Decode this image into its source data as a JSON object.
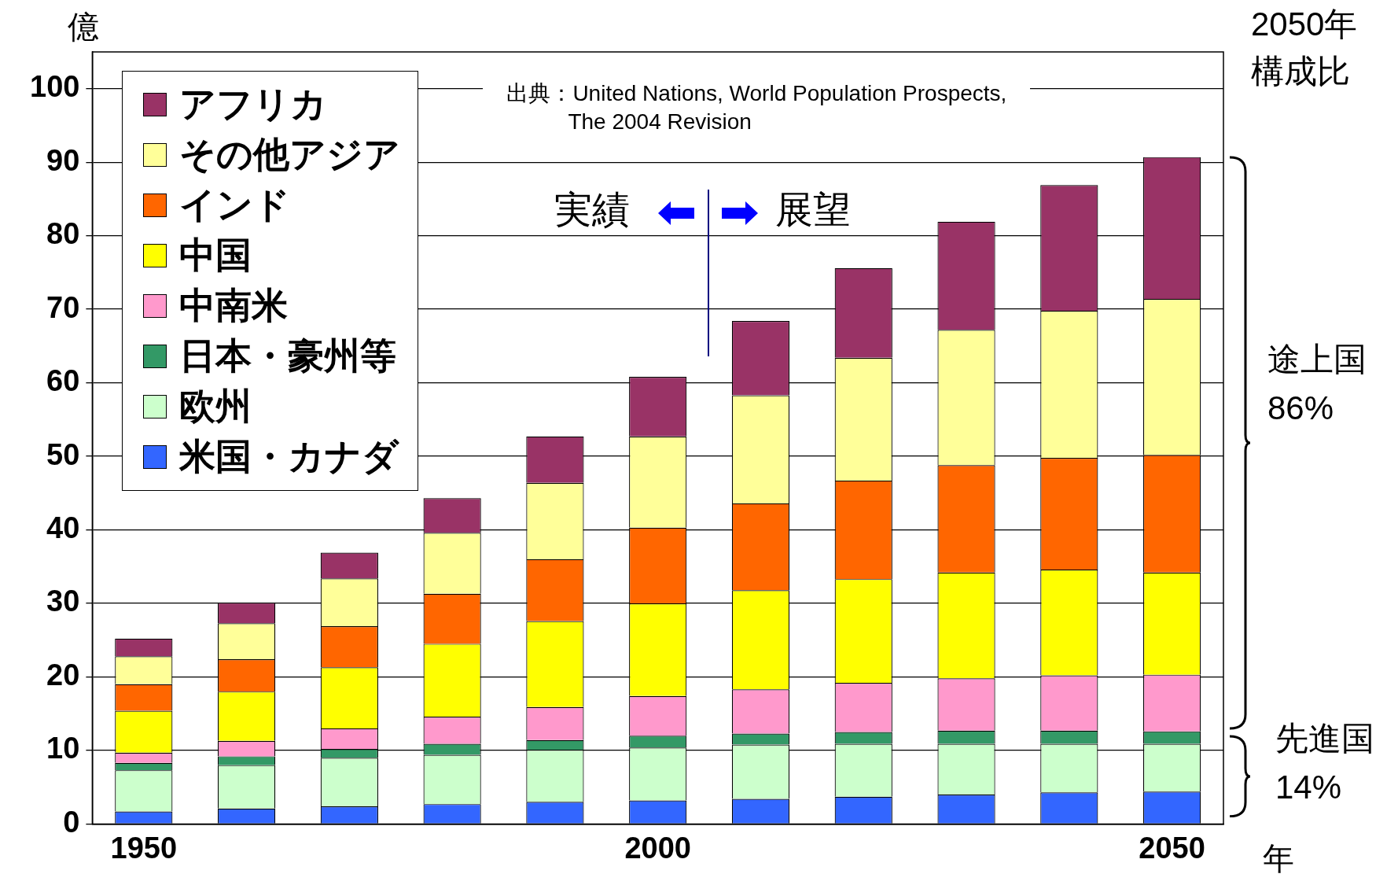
{
  "chart_data": {
    "type": "bar",
    "stacked": true,
    "ylabel": "億",
    "xlabel": "年",
    "categories": [
      "1950",
      null,
      null,
      null,
      null,
      "2000",
      null,
      null,
      null,
      null,
      "2050"
    ],
    "series": [
      {
        "name": "米国・カナダ",
        "color": "#3366ff",
        "values": [
          1.7,
          2.1,
          2.4,
          2.7,
          3.0,
          3.2,
          3.4,
          3.7,
          4.0,
          4.3,
          4.4
        ]
      },
      {
        "name": "欧州",
        "color": "#ccffcc",
        "values": [
          5.6,
          5.9,
          6.6,
          6.7,
          7.1,
          7.2,
          7.4,
          7.2,
          6.9,
          6.6,
          6.5
        ]
      },
      {
        "name": "日本・豪州等",
        "color": "#339966",
        "values": [
          1.0,
          1.2,
          1.2,
          1.5,
          1.3,
          1.6,
          1.5,
          1.6,
          1.8,
          1.8,
          1.7
        ]
      },
      {
        "name": "中南米",
        "color": "#ff99cc",
        "values": [
          1.4,
          2.1,
          2.8,
          3.7,
          4.5,
          5.4,
          6.0,
          6.7,
          7.1,
          7.5,
          7.7
        ]
      },
      {
        "name": "中国",
        "color": "#ffff00",
        "values": [
          5.7,
          6.7,
          8.3,
          9.9,
          11.7,
          12.6,
          13.5,
          14.1,
          14.4,
          14.4,
          13.9
        ]
      },
      {
        "name": "インド",
        "color": "#ff6600",
        "values": [
          3.6,
          4.4,
          5.6,
          6.8,
          8.4,
          10.3,
          11.8,
          13.4,
          14.6,
          15.2,
          16.0
        ]
      },
      {
        "name": "その他アジア",
        "color": "#ffff99",
        "values": [
          3.8,
          4.9,
          6.5,
          8.3,
          10.4,
          12.4,
          14.7,
          16.7,
          18.4,
          20.0,
          21.2
        ]
      },
      {
        "name": "アフリカ",
        "color": "#993366",
        "values": [
          2.4,
          2.8,
          3.5,
          4.7,
          6.3,
          8.1,
          10.1,
          12.2,
          14.7,
          17.1,
          19.3
        ]
      }
    ],
    "ylim": [
      0,
      105
    ],
    "yticks": [
      0,
      10,
      20,
      30,
      40,
      50,
      60,
      70,
      80,
      90,
      100
    ],
    "grid": "y",
    "legend": "top left",
    "annotations": [
      "出典：United Nations, World Population Prospects,\nThe 2004 Revision",
      "実績",
      "展望",
      "2050年",
      "構成比",
      "途上国",
      "86%",
      "先進国",
      "14%"
    ]
  }
}
